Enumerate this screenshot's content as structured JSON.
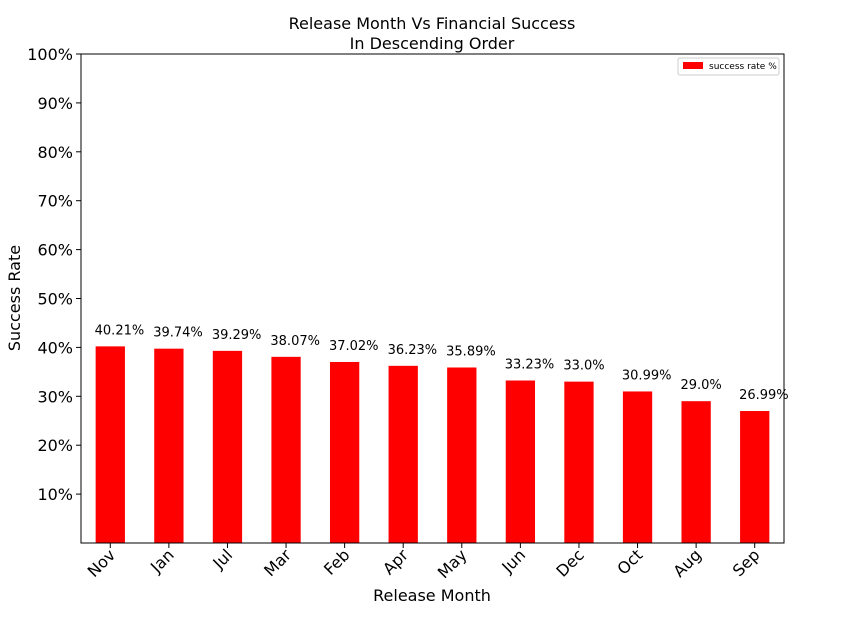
{
  "chart_data": {
    "type": "bar",
    "title": "Release Month Vs Financial Success",
    "subtitle": "In Descending Order",
    "xlabel": "Release Month",
    "ylabel": "Success Rate",
    "categories": [
      "Nov",
      "Jan",
      "Jul",
      "Mar",
      "Feb",
      "Apr",
      "May",
      "Jun",
      "Dec",
      "Oct",
      "Aug",
      "Sep"
    ],
    "series": [
      {
        "name": "success rate %",
        "values": [
          40.21,
          39.74,
          39.29,
          38.07,
          37.02,
          36.23,
          35.89,
          33.23,
          33.0,
          30.99,
          29.0,
          26.99
        ],
        "color": "#ff0000"
      }
    ],
    "data_labels": [
      "40.21%",
      "39.74%",
      "39.29%",
      "38.07%",
      "37.02%",
      "36.23%",
      "35.89%",
      "33.23%",
      "33.0%",
      "30.99%",
      "29.0%",
      "26.99%"
    ],
    "ylim": [
      0,
      100
    ],
    "yticks": [
      10,
      20,
      30,
      40,
      50,
      60,
      70,
      80,
      90,
      100
    ],
    "ytick_labels": [
      "10%",
      "20%",
      "30%",
      "40%",
      "50%",
      "60%",
      "70%",
      "80%",
      "90%",
      "100%"
    ],
    "legend_position": "top-right",
    "grid": false,
    "xtick_rotation": 45
  }
}
